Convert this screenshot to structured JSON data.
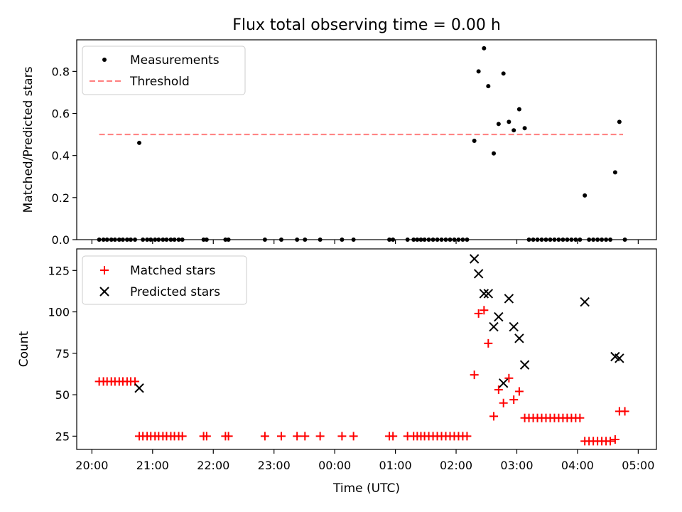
{
  "title": "Flux total observing time = 0.00 h",
  "colors": {
    "measurement": "#000000",
    "threshold": "#ff7f7f",
    "matched": "#ff0000",
    "predicted": "#000000"
  },
  "chart_data": [
    {
      "type": "scatter",
      "title": "Flux total observing time = 0.00 h",
      "xlabel": "",
      "ylabel": "Matched/Predicted stars",
      "xlim": [
        19.75,
        29.3
      ],
      "ylim": [
        0,
        0.95
      ],
      "x_ticks": [
        20,
        21,
        22,
        23,
        24,
        25,
        26,
        27,
        28,
        29
      ],
      "y_ticks": [
        0.0,
        0.2,
        0.4,
        0.6,
        0.8
      ],
      "y_tick_labels": [
        "0.0",
        "0.2",
        "0.4",
        "0.6",
        "0.8"
      ],
      "x_tick_labels_visible": false,
      "legend_position": "top-left",
      "legend": [
        "Measurements",
        "Threshold"
      ],
      "threshold": {
        "name": "Threshold",
        "y": 0.5,
        "x_range": [
          20.12,
          28.75
        ],
        "style": "dashed"
      },
      "series": [
        {
          "name": "Measurements",
          "marker": "dot",
          "points": [
            [
              20.12,
              0
            ],
            [
              20.19,
              0
            ],
            [
              20.25,
              0
            ],
            [
              20.32,
              0
            ],
            [
              20.38,
              0
            ],
            [
              20.45,
              0
            ],
            [
              20.51,
              0
            ],
            [
              20.58,
              0
            ],
            [
              20.64,
              0
            ],
            [
              20.71,
              0
            ],
            [
              20.78,
              0.46
            ],
            [
              20.84,
              0
            ],
            [
              20.91,
              0
            ],
            [
              20.97,
              0
            ],
            [
              21.04,
              0
            ],
            [
              21.1,
              0
            ],
            [
              21.17,
              0
            ],
            [
              21.23,
              0
            ],
            [
              21.3,
              0
            ],
            [
              21.36,
              0
            ],
            [
              21.43,
              0
            ],
            [
              21.49,
              0
            ],
            [
              21.84,
              0
            ],
            [
              21.89,
              0
            ],
            [
              22.2,
              0
            ],
            [
              22.25,
              0
            ],
            [
              22.85,
              0
            ],
            [
              23.12,
              0
            ],
            [
              23.38,
              0
            ],
            [
              23.51,
              0
            ],
            [
              23.76,
              0
            ],
            [
              24.12,
              0
            ],
            [
              24.31,
              0
            ],
            [
              24.9,
              0
            ],
            [
              24.96,
              0
            ],
            [
              25.2,
              0
            ],
            [
              25.3,
              0
            ],
            [
              25.36,
              0
            ],
            [
              25.42,
              0
            ],
            [
              25.48,
              0
            ],
            [
              25.55,
              0
            ],
            [
              25.62,
              0
            ],
            [
              25.69,
              0
            ],
            [
              25.76,
              0
            ],
            [
              25.83,
              0
            ],
            [
              25.9,
              0
            ],
            [
              25.97,
              0
            ],
            [
              26.04,
              0
            ],
            [
              26.11,
              0
            ],
            [
              26.18,
              0
            ],
            [
              26.3,
              0.47
            ],
            [
              26.37,
              0.8
            ],
            [
              26.46,
              0.91
            ],
            [
              26.53,
              0.73
            ],
            [
              26.62,
              0.41
            ],
            [
              26.7,
              0.55
            ],
            [
              26.78,
              0.79
            ],
            [
              26.87,
              0.56
            ],
            [
              26.95,
              0.52
            ],
            [
              27.04,
              0.62
            ],
            [
              27.13,
              0.53
            ],
            [
              27.2,
              0
            ],
            [
              27.27,
              0
            ],
            [
              27.34,
              0
            ],
            [
              27.41,
              0
            ],
            [
              27.48,
              0
            ],
            [
              27.55,
              0
            ],
            [
              27.62,
              0
            ],
            [
              27.69,
              0
            ],
            [
              27.76,
              0
            ],
            [
              27.83,
              0
            ],
            [
              27.9,
              0
            ],
            [
              27.97,
              0
            ],
            [
              28.04,
              0
            ],
            [
              28.12,
              0.21
            ],
            [
              28.19,
              0
            ],
            [
              28.26,
              0
            ],
            [
              28.33,
              0
            ],
            [
              28.4,
              0
            ],
            [
              28.47,
              0
            ],
            [
              28.54,
              0
            ],
            [
              28.62,
              0.32
            ],
            [
              28.69,
              0.56
            ],
            [
              28.78,
              0
            ]
          ]
        }
      ]
    },
    {
      "type": "scatter",
      "xlabel": "Time (UTC)",
      "ylabel": "Count",
      "xlim": [
        19.75,
        29.3
      ],
      "ylim": [
        17,
        138
      ],
      "x_ticks": [
        20,
        21,
        22,
        23,
        24,
        25,
        26,
        27,
        28,
        29
      ],
      "x_tick_labels": [
        "20:00",
        "21:00",
        "22:00",
        "23:00",
        "00:00",
        "01:00",
        "02:00",
        "03:00",
        "04:00",
        "05:00"
      ],
      "y_ticks": [
        25,
        50,
        75,
        100,
        125
      ],
      "y_tick_labels": [
        "25",
        "50",
        "75",
        "100",
        "125"
      ],
      "legend_position": "top-left",
      "legend": [
        "Matched stars",
        "Predicted stars"
      ],
      "series": [
        {
          "name": "Matched stars",
          "marker": "plus",
          "points": [
            [
              20.12,
              58
            ],
            [
              20.19,
              58
            ],
            [
              20.25,
              58
            ],
            [
              20.32,
              58
            ],
            [
              20.38,
              58
            ],
            [
              20.45,
              58
            ],
            [
              20.51,
              58
            ],
            [
              20.58,
              58
            ],
            [
              20.64,
              58
            ],
            [
              20.71,
              58
            ],
            [
              20.78,
              25
            ],
            [
              20.84,
              25
            ],
            [
              20.91,
              25
            ],
            [
              20.97,
              25
            ],
            [
              21.04,
              25
            ],
            [
              21.1,
              25
            ],
            [
              21.17,
              25
            ],
            [
              21.23,
              25
            ],
            [
              21.3,
              25
            ],
            [
              21.36,
              25
            ],
            [
              21.43,
              25
            ],
            [
              21.49,
              25
            ],
            [
              21.84,
              25
            ],
            [
              21.89,
              25
            ],
            [
              22.2,
              25
            ],
            [
              22.25,
              25
            ],
            [
              22.85,
              25
            ],
            [
              23.12,
              25
            ],
            [
              23.38,
              25
            ],
            [
              23.51,
              25
            ],
            [
              23.76,
              25
            ],
            [
              24.12,
              25
            ],
            [
              24.31,
              25
            ],
            [
              24.9,
              25
            ],
            [
              24.96,
              25
            ],
            [
              25.2,
              25
            ],
            [
              25.3,
              25
            ],
            [
              25.36,
              25
            ],
            [
              25.42,
              25
            ],
            [
              25.48,
              25
            ],
            [
              25.55,
              25
            ],
            [
              25.62,
              25
            ],
            [
              25.69,
              25
            ],
            [
              25.76,
              25
            ],
            [
              25.83,
              25
            ],
            [
              25.9,
              25
            ],
            [
              25.97,
              25
            ],
            [
              26.04,
              25
            ],
            [
              26.11,
              25
            ],
            [
              26.18,
              25
            ],
            [
              26.3,
              62
            ],
            [
              26.37,
              99
            ],
            [
              26.46,
              101
            ],
            [
              26.53,
              81
            ],
            [
              26.62,
              37
            ],
            [
              26.7,
              53
            ],
            [
              26.78,
              45
            ],
            [
              26.87,
              60
            ],
            [
              26.95,
              47
            ],
            [
              27.04,
              52
            ],
            [
              27.13,
              36
            ],
            [
              27.2,
              36
            ],
            [
              27.27,
              36
            ],
            [
              27.34,
              36
            ],
            [
              27.41,
              36
            ],
            [
              27.48,
              36
            ],
            [
              27.55,
              36
            ],
            [
              27.62,
              36
            ],
            [
              27.69,
              36
            ],
            [
              27.76,
              36
            ],
            [
              27.83,
              36
            ],
            [
              27.9,
              36
            ],
            [
              27.97,
              36
            ],
            [
              28.04,
              36
            ],
            [
              28.12,
              22
            ],
            [
              28.19,
              22
            ],
            [
              28.26,
              22
            ],
            [
              28.33,
              22
            ],
            [
              28.4,
              22
            ],
            [
              28.47,
              22
            ],
            [
              28.54,
              22
            ],
            [
              28.62,
              23
            ],
            [
              28.69,
              40
            ],
            [
              28.78,
              40
            ]
          ]
        },
        {
          "name": "Predicted stars",
          "marker": "x",
          "points": [
            [
              20.78,
              54
            ],
            [
              26.3,
              132
            ],
            [
              26.37,
              123
            ],
            [
              26.46,
              111
            ],
            [
              26.53,
              111
            ],
            [
              26.62,
              91
            ],
            [
              26.7,
              97
            ],
            [
              26.78,
              57
            ],
            [
              26.87,
              108
            ],
            [
              26.95,
              91
            ],
            [
              27.04,
              84
            ],
            [
              27.13,
              68
            ],
            [
              28.12,
              106
            ],
            [
              28.62,
              73
            ],
            [
              28.69,
              72
            ]
          ]
        }
      ]
    }
  ]
}
